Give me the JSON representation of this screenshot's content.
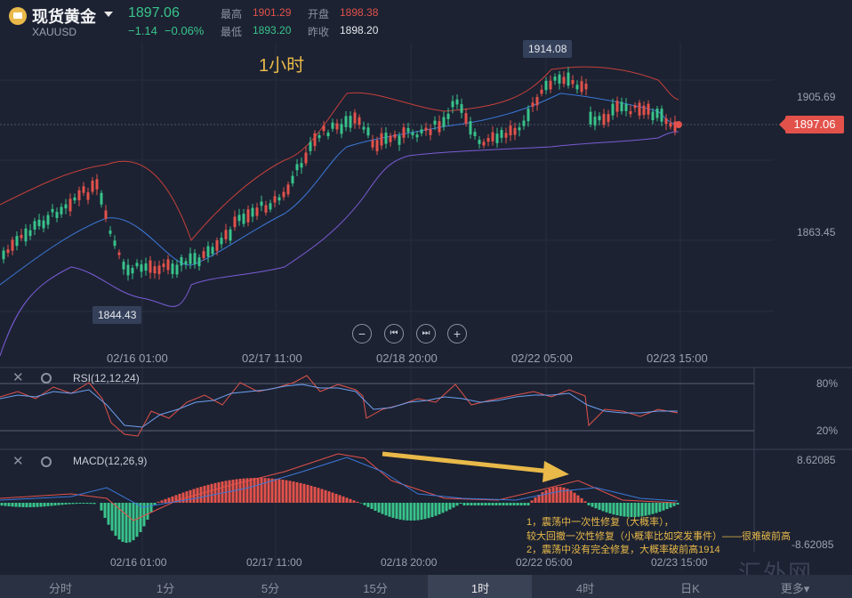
{
  "header": {
    "title": "现货黄金",
    "symbol": "XAUUSD",
    "price": "1897.06",
    "change": "−1.14",
    "change_pct": "−0.06%",
    "high_label": "最高",
    "high_value": "1901.29",
    "open_label": "开盘",
    "open_value": "1898.38",
    "low_label": "最低",
    "low_value": "1893.20",
    "prev_label": "昨收",
    "prev_value": "1898.20"
  },
  "chart": {
    "timeframe_label": "1小时",
    "y_labels": [
      "1905.69",
      "1863.45"
    ],
    "current_price": "1897.06",
    "high_marker": "1914.08",
    "low_marker": "1844.43",
    "x_labels": [
      "02/16 01:00",
      "02/17 11:00",
      "02/18 20:00",
      "02/22 05:00",
      "02/23 15:00"
    ]
  },
  "controls": {
    "zoom_out": "−",
    "prev": "⏮",
    "next": "⏭",
    "zoom_in": "+"
  },
  "rsi": {
    "title": "RSI(12,12,24)",
    "level_high": "80%",
    "level_low": "20%"
  },
  "macd": {
    "title": "MACD(12,26,9)",
    "max_label": "8.62085",
    "min_label": "-8.62085",
    "x_labels": [
      "02/16 01:00",
      "02/17 11:00",
      "02/18 20:00",
      "02/22 05:00",
      "02/23 15:00"
    ]
  },
  "notes": [
    "1，震荡中一次性修复（大概率），",
    "较大回撤一次性修复（小概率比如突发事件）——很难破前高",
    "2，震荡中没有完全修复，大概率破前高1914"
  ],
  "tabs": [
    "分时",
    "1分",
    "5分",
    "15分",
    "1时",
    "4时",
    "日K",
    "更多▾"
  ],
  "active_tab": "1时",
  "watermark": "汇外网",
  "colors": {
    "up": "#e2524b",
    "down": "#39c38b",
    "accent": "#e9b949",
    "bg": "#1c2232"
  }
}
